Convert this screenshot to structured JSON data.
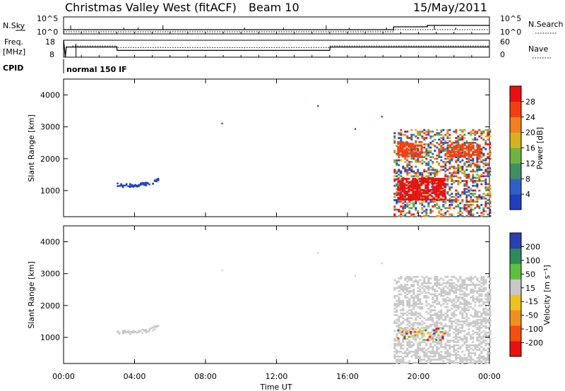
{
  "header": {
    "station": "Christmas Valley West (fitACF)",
    "beam": "Beam 10",
    "date": "15/May/2011"
  },
  "left_labels": {
    "nsky": "N.Sky",
    "freq": "Freq.",
    "freq_unit": "[MHz]",
    "cpid": "CPID"
  },
  "right_labels": {
    "nsearch": "N.Search",
    "nave": "Nave"
  },
  "cpid_text": "normal 150 IF",
  "colors": {
    "power_scale": [
      "#1f3fbf",
      "#2e60c8",
      "#3f8f5f",
      "#6fb340",
      "#d8b020",
      "#f08020",
      "#f04010",
      "#e81010"
    ],
    "velocity_scale": [
      "#2a3fb0",
      "#2e8a5a",
      "#5fc040",
      "#c8c8c8",
      "#f0c020",
      "#f09020",
      "#f05010",
      "#e81010"
    ]
  },
  "chart_data": [
    {
      "type": "line",
      "name": "noise-panel",
      "series": [
        {
          "name": "N.Sky"
        },
        {
          "name": "N.Search"
        }
      ],
      "y_left": {
        "label": "N.Sky",
        "ticks": [
          "10^5",
          "10^0"
        ]
      },
      "y_right": {
        "label": "N.Search",
        "ticks": [
          "10^5",
          "10^0"
        ]
      },
      "xlim": [
        0,
        24
      ]
    },
    {
      "type": "line",
      "name": "frequency-panel",
      "y_left": {
        "label": "Freq. [MHz]",
        "ticks": [
          "18",
          "8"
        ],
        "ylim": [
          8,
          18
        ]
      },
      "y_right": {
        "label": "Nave",
        "ticks": [
          "60",
          "0"
        ],
        "ylim": [
          0,
          60
        ]
      },
      "freq_steps": [
        [
          0,
          18
        ],
        [
          0.1,
          8
        ],
        [
          0.15,
          14
        ],
        [
          3,
          14
        ],
        [
          3.02,
          12
        ],
        [
          15,
          12
        ],
        [
          15.02,
          14
        ],
        [
          24,
          14
        ]
      ],
      "nave_steps": [
        [
          0.5,
          40
        ],
        [
          3,
          40
        ],
        [
          3.02,
          34
        ],
        [
          15,
          34
        ],
        [
          15.02,
          40
        ],
        [
          24,
          40
        ]
      ],
      "xlim": [
        0,
        24
      ]
    },
    {
      "type": "heatmap",
      "name": "power-panel",
      "ylabel": "Slant Range [km]",
      "y_ticks": [
        1000,
        2000,
        3000,
        4000
      ],
      "ylim": [
        180,
        4500
      ],
      "xlim": [
        0,
        24
      ],
      "colorbar": {
        "label": "Power [dB]",
        "ticks": [
          "28",
          "24",
          "20",
          "16",
          "12",
          "8",
          "4"
        ],
        "range": [
          0,
          30
        ]
      },
      "features": [
        {
          "x0": 3.0,
          "x1": 5.3,
          "y_center": 1200,
          "thickness": 120,
          "curve": 80,
          "color": 0,
          "density": 0.7
        },
        {
          "x0": 18.6,
          "x1": 24,
          "y0": 180,
          "y1": 2900,
          "color": "mix",
          "density": 0.45
        },
        {
          "x0": 18.8,
          "x1": 21.5,
          "y0": 700,
          "y1": 1400,
          "color": 7,
          "density": 0.75
        },
        {
          "x0": 18.8,
          "x1": 20.2,
          "y0": 2050,
          "y1": 2550,
          "color": 6,
          "density": 0.7
        },
        {
          "x0": 21.6,
          "x1": 23.4,
          "y0": 2050,
          "y1": 2450,
          "color": 6,
          "density": 0.7
        }
      ],
      "points": [
        [
          8.9,
          3130,
          0
        ],
        [
          14.3,
          3680,
          0
        ],
        [
          16.4,
          2960,
          0
        ],
        [
          17.9,
          3350,
          0
        ]
      ]
    },
    {
      "type": "heatmap",
      "name": "velocity-panel",
      "ylabel": "Slant Range [km]",
      "y_ticks": [
        1000,
        2000,
        3000,
        4000
      ],
      "ylim": [
        180,
        4500
      ],
      "xlim": [
        0,
        24
      ],
      "x_ticks": [
        "00:00",
        "04:00",
        "08:00",
        "12:00",
        "16:00",
        "20:00",
        "00:00"
      ],
      "xlabel": "Time UT",
      "colorbar": {
        "label": "Velocity [m s^-1]",
        "ticks": [
          "200",
          "100",
          "50",
          "15",
          "-15",
          "-50",
          "-100",
          "-200"
        ],
        "range": [
          -250,
          250
        ]
      },
      "features": [
        {
          "x0": 3.0,
          "x1": 5.3,
          "y_center": 1200,
          "thickness": 120,
          "curve": 80,
          "color": 3,
          "density": 0.7
        },
        {
          "x0": 18.6,
          "x1": 24,
          "y0": 180,
          "y1": 2900,
          "color": 3,
          "density": 0.5
        },
        {
          "x0": 18.8,
          "x1": 21.5,
          "y0": 900,
          "y1": 1300,
          "color": "mix",
          "density": 0.3
        }
      ],
      "points": [
        [
          8.9,
          3130,
          3
        ],
        [
          14.3,
          3680,
          3
        ],
        [
          16.4,
          2960,
          3
        ],
        [
          17.9,
          3350,
          3
        ]
      ]
    }
  ]
}
